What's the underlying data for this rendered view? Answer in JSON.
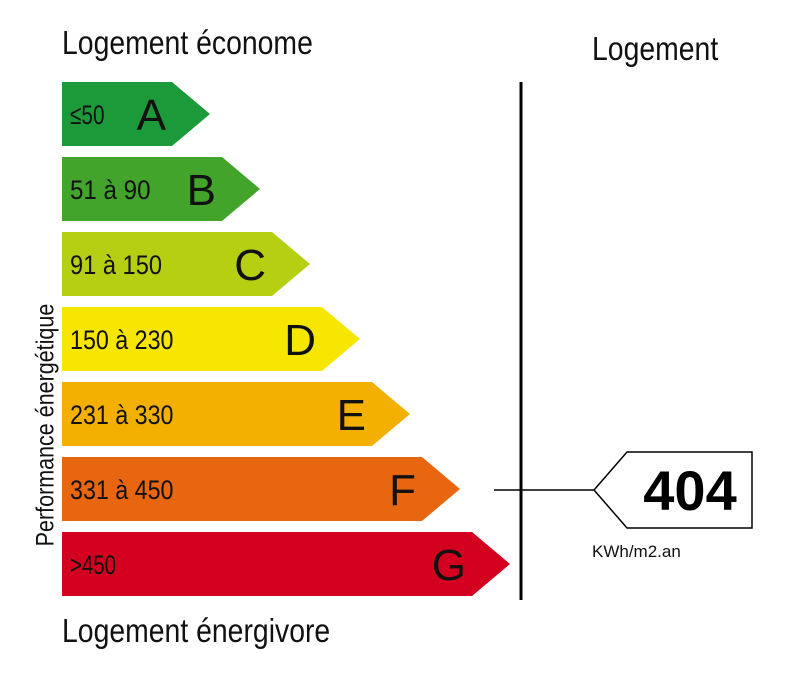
{
  "header": {
    "top_label": "Logement économe",
    "right_label": "Logement"
  },
  "footer": {
    "bottom_label": "Logement énergivore"
  },
  "axis": {
    "ylabel": "Performance énergétique"
  },
  "chart_data": {
    "type": "bar",
    "categories": [
      "A",
      "B",
      "C",
      "D",
      "E",
      "F",
      "G"
    ],
    "ranges": [
      "≤50",
      "51 à 90",
      "91 à 150",
      "150 à 230",
      "231 à 330",
      "331 à 450",
      ">450"
    ],
    "colors": [
      "#1c9a3a",
      "#43a42c",
      "#b6cf12",
      "#f7e600",
      "#f4b000",
      "#e8660f",
      "#d4001f"
    ],
    "text_colors": [
      "#111111",
      "#111111",
      "#111111",
      "#111111",
      "#111111",
      "#111111",
      "#ffffff"
    ],
    "marker": {
      "value": "404",
      "category": "F",
      "unit": "KWh/m2.an"
    }
  }
}
